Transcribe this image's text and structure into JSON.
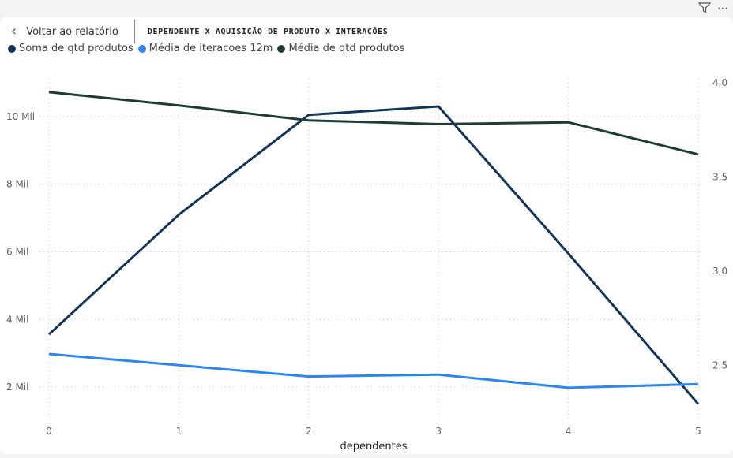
{
  "header": {
    "back_label": "Voltar ao relatório",
    "title": "DEPENDENTE X AQUISIÇÃO DE PRODUTO X INTERAÇÕES"
  },
  "icons": {
    "filter": "filter-icon",
    "more": "more-options-icon"
  },
  "chart_data": {
    "type": "line",
    "title": "DEPENDENTE X AQUISIÇÃO DE PRODUTO X INTERAÇÕES",
    "xlabel": "dependentes",
    "ylabel": "",
    "x": [
      0,
      1,
      2,
      3,
      4,
      5
    ],
    "x_ticks": [
      "0",
      "1",
      "2",
      "3",
      "4",
      "5"
    ],
    "y_left_range": [
      1000,
      11000
    ],
    "y_left_ticks": [
      2000,
      4000,
      6000,
      8000,
      10000
    ],
    "y_left_tick_labels": [
      "2 Mil",
      "4 Mil",
      "6 Mil",
      "8 Mil",
      "10 Mil"
    ],
    "y_right_range": [
      2.25,
      4.0
    ],
    "y_right_ticks": [
      2.5,
      3.0,
      3.5,
      4.0
    ],
    "y_right_tick_labels": [
      "2,5",
      "3,0",
      "3,5",
      "4,0"
    ],
    "grid": true,
    "legend_position": "top-left",
    "series": [
      {
        "name": "Soma de qtd produtos",
        "axis": "left",
        "color": "#12355b",
        "values": [
          3560,
          7100,
          10050,
          10300,
          5950,
          1500
        ]
      },
      {
        "name": "Média de iteracoes 12m",
        "axis": "right",
        "color": "#2b87f0",
        "values": [
          2.56,
          2.5,
          2.44,
          2.45,
          2.38,
          2.4
        ]
      },
      {
        "name": "Média de qtd produtos",
        "axis": "right",
        "color": "#1b3d36",
        "values": [
          3.95,
          3.88,
          3.8,
          3.78,
          3.79,
          3.62
        ]
      }
    ]
  }
}
